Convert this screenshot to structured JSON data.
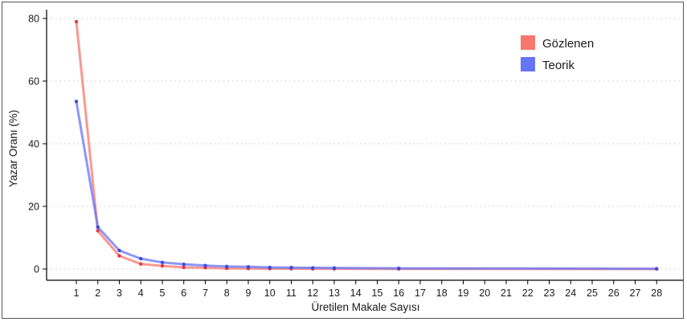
{
  "chart_data": {
    "type": "line",
    "title": "",
    "xlabel": "Üretilen Makale Sayısı",
    "ylabel": "Yazar Oranı (%)",
    "x": [
      1,
      2,
      3,
      4,
      5,
      6,
      7,
      8,
      9,
      10,
      11,
      12,
      13,
      14,
      15,
      16,
      17,
      18,
      19,
      20,
      21,
      22,
      23,
      24,
      25,
      26,
      27,
      28
    ],
    "x_tick_labels": [
      "1",
      "2",
      "3",
      "4",
      "5",
      "6",
      "7",
      "8",
      "9",
      "10",
      "11",
      "12",
      "13",
      "14",
      "15",
      "16",
      "17",
      "18",
      "19",
      "20",
      "21",
      "22",
      "23",
      "24",
      "25",
      "26",
      "27",
      "28"
    ],
    "ylim": [
      0,
      80
    ],
    "y_ticks": [
      0,
      20,
      40,
      60,
      80
    ],
    "grid": "horizontal dotted",
    "legend_position": "top-right",
    "series": [
      {
        "name": "Gözlenen",
        "color": "#f8766d",
        "points": [
          [
            1,
            79.0
          ],
          [
            2,
            12.2
          ],
          [
            3,
            4.2
          ],
          [
            4,
            1.6
          ],
          [
            5,
            1.0
          ],
          [
            6,
            0.5
          ],
          [
            7,
            0.4
          ],
          [
            8,
            0.2
          ],
          [
            9,
            0.15
          ],
          [
            10,
            0.1
          ],
          [
            11,
            0.1
          ],
          [
            12,
            0.05
          ],
          [
            13,
            0.05
          ],
          [
            16,
            0.02
          ],
          [
            28,
            0.01
          ]
        ]
      },
      {
        "name": "Teorik",
        "color": "#6674f6",
        "points": [
          [
            1,
            53.5
          ],
          [
            2,
            13.4
          ],
          [
            3,
            5.9
          ],
          [
            4,
            3.3
          ],
          [
            5,
            2.1
          ],
          [
            6,
            1.5
          ],
          [
            7,
            1.1
          ],
          [
            8,
            0.8
          ],
          [
            9,
            0.7
          ],
          [
            10,
            0.5
          ],
          [
            11,
            0.45
          ],
          [
            12,
            0.37
          ],
          [
            13,
            0.32
          ],
          [
            16,
            0.21
          ],
          [
            28,
            0.07
          ]
        ]
      }
    ]
  }
}
